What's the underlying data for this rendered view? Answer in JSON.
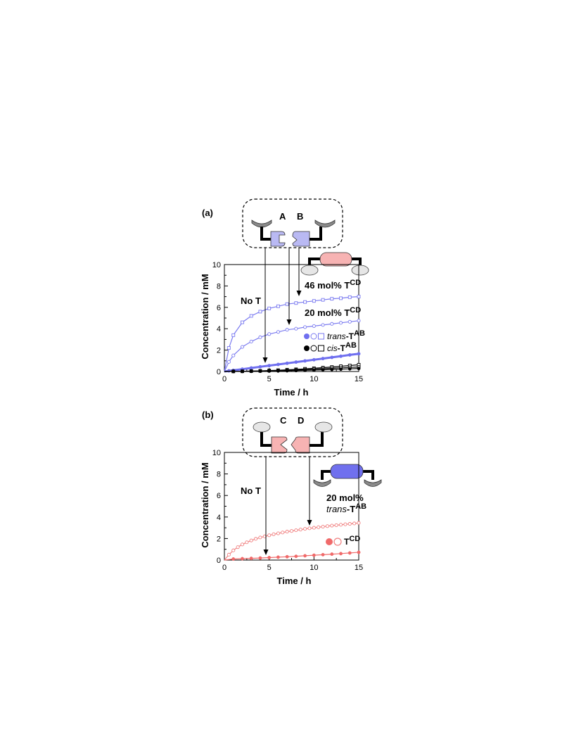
{
  "chart_data": [
    {
      "panel": "(a)",
      "type": "scatter",
      "xlabel": "Time / h",
      "ylabel": "Concentration / mM",
      "xlim": [
        0,
        15
      ],
      "ylim": [
        0,
        10
      ],
      "xticks": [
        "0",
        "5",
        "10",
        "15"
      ],
      "yticks": [
        "0",
        "2",
        "4",
        "6",
        "8",
        "10"
      ],
      "template_labels": [
        "A",
        "B"
      ],
      "annotations": [
        {
          "pre": "",
          "text": "No T",
          "sup": ""
        },
        {
          "pre": "",
          "text": "46 mol% T",
          "sup": "CD"
        },
        {
          "pre": "",
          "text": "20 mol% T",
          "sup": "CD"
        }
      ],
      "legend": [
        {
          "italic": "trans",
          "text": "-T",
          "sup": "AB"
        },
        {
          "italic": "cis",
          "text": "-T",
          "sup": "AB"
        }
      ],
      "series": [
        {
          "color": "#7b7bf0",
          "marker": "open-square",
          "x": [
            0.5,
            1,
            2,
            3,
            4,
            5,
            6,
            7,
            8,
            9,
            10,
            11,
            12,
            13,
            14,
            15
          ],
          "y": [
            2.2,
            3.4,
            4.6,
            5.2,
            5.6,
            5.9,
            6.1,
            6.3,
            6.4,
            6.5,
            6.6,
            6.7,
            6.8,
            6.85,
            6.95,
            7.0
          ]
        },
        {
          "color": "#7b7bf0",
          "marker": "open-circle",
          "x": [
            0.5,
            1,
            2,
            3,
            4,
            5,
            6,
            7,
            8,
            9,
            10,
            11,
            12,
            13,
            14,
            15
          ],
          "y": [
            0.9,
            1.5,
            2.3,
            2.8,
            3.2,
            3.5,
            3.7,
            3.9,
            4.0,
            4.15,
            4.25,
            4.35,
            4.45,
            4.55,
            4.65,
            4.75
          ]
        },
        {
          "color": "#6f6fef",
          "marker": "filled-circle",
          "x": [
            0.5,
            1,
            2,
            3,
            4,
            5,
            6,
            7,
            8,
            9,
            10,
            11,
            12,
            13,
            14,
            15
          ],
          "y": [
            0.06,
            0.11,
            0.22,
            0.33,
            0.44,
            0.55,
            0.66,
            0.77,
            0.88,
            0.99,
            1.1,
            1.21,
            1.32,
            1.43,
            1.55,
            1.66
          ]
        },
        {
          "color": "#000000",
          "marker": "open-square",
          "x": [
            1,
            2,
            3,
            4,
            5,
            6,
            7,
            8,
            9,
            10,
            11,
            12,
            13,
            14,
            15
          ],
          "y": [
            0.01,
            0.02,
            0.04,
            0.06,
            0.09,
            0.12,
            0.16,
            0.2,
            0.25,
            0.3,
            0.36,
            0.42,
            0.49,
            0.56,
            0.63
          ]
        },
        {
          "color": "#000000",
          "marker": "open-circle",
          "x": [
            1,
            2,
            3,
            4,
            5,
            6,
            7,
            8,
            9,
            10,
            11,
            12,
            13,
            14,
            15
          ],
          "y": [
            0.01,
            0.02,
            0.03,
            0.05,
            0.07,
            0.09,
            0.12,
            0.15,
            0.18,
            0.22,
            0.26,
            0.3,
            0.34,
            0.38,
            0.42
          ]
        },
        {
          "color": "#000000",
          "marker": "filled-circle",
          "x": [
            1,
            2,
            3,
            4,
            5,
            6,
            7,
            8,
            9,
            10,
            11,
            12,
            13,
            14,
            15
          ],
          "y": [
            0.01,
            0.01,
            0.02,
            0.03,
            0.04,
            0.05,
            0.07,
            0.09,
            0.11,
            0.13,
            0.16,
            0.19,
            0.22,
            0.25,
            0.28
          ]
        }
      ]
    },
    {
      "panel": "(b)",
      "type": "scatter",
      "xlabel": "Time / h",
      "ylabel": "Concentration / mM",
      "xlim": [
        0,
        15
      ],
      "ylim": [
        0,
        10
      ],
      "xticks": [
        "0",
        "5",
        "10",
        "15"
      ],
      "yticks": [
        "0",
        "2",
        "4",
        "6",
        "8",
        "10"
      ],
      "template_labels": [
        "C",
        "D"
      ],
      "annotations": [
        {
          "pre": "",
          "text": "No T",
          "sup": ""
        },
        {
          "pre": "",
          "text": "20 mol%",
          "sup": ""
        },
        {
          "pre": "trans",
          "text": "-T",
          "sup": "AB"
        }
      ],
      "legend": [
        {
          "italic": "",
          "text": "T",
          "sup": "CD"
        }
      ],
      "series": [
        {
          "color": "#f08080",
          "marker": "open-circle",
          "x": [
            0.5,
            1,
            1.5,
            2,
            2.5,
            3,
            3.5,
            4,
            4.5,
            5,
            5.5,
            6,
            6.5,
            7,
            7.5,
            8,
            8.5,
            9,
            9.5,
            10,
            10.5,
            11,
            11.5,
            12,
            12.5,
            13,
            13.5,
            14,
            14.5,
            15
          ],
          "y": [
            0.5,
            0.9,
            1.2,
            1.45,
            1.65,
            1.82,
            1.97,
            2.1,
            2.2,
            2.3,
            2.4,
            2.48,
            2.56,
            2.64,
            2.7,
            2.77,
            2.83,
            2.9,
            2.95,
            3.0,
            3.05,
            3.1,
            3.15,
            3.2,
            3.24,
            3.28,
            3.32,
            3.36,
            3.4,
            3.45
          ]
        },
        {
          "color": "#f06a6a",
          "marker": "filled-circle",
          "x": [
            1,
            2,
            3,
            4,
            5,
            6,
            7,
            8,
            9,
            10,
            11,
            12,
            13,
            14,
            15
          ],
          "y": [
            0.1,
            0.13,
            0.16,
            0.19,
            0.23,
            0.27,
            0.31,
            0.35,
            0.4,
            0.45,
            0.5,
            0.55,
            0.6,
            0.66,
            0.72
          ]
        }
      ]
    }
  ]
}
